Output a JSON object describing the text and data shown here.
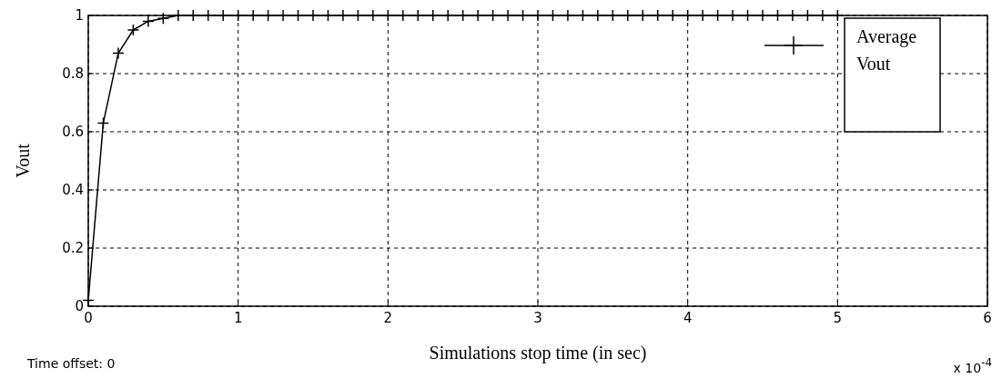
{
  "chart_data": {
    "type": "line",
    "xlabel": "Simulations stop time (in sec)",
    "ylabel": "Vout",
    "xlim": [
      0,
      6
    ],
    "ylim": [
      0,
      1
    ],
    "xticks": [
      0,
      1,
      2,
      3,
      4,
      5,
      6
    ],
    "yticks": [
      0,
      0.2,
      0.4,
      0.6,
      0.8,
      1
    ],
    "grid": true,
    "legend": "top right",
    "marker": "cross",
    "line_style": "solid",
    "annotations": [
      "Time offset:  0",
      "x 10$^{-4}$"
    ],
    "series": [
      {
        "name": "Average Vout",
        "color": "#000000",
        "x": [
          0,
          0.1,
          0.2,
          0.3,
          0.4,
          0.5,
          0.6,
          0.7,
          0.8,
          0.9,
          1,
          1.1,
          1.2,
          1.3,
          1.4,
          1.5,
          1.6,
          1.7,
          1.8,
          1.9,
          2,
          2.1,
          2.2,
          2.3,
          2.4,
          2.5,
          2.6,
          2.7,
          2.8,
          2.9,
          3,
          3.1,
          3.2,
          3.3,
          3.4,
          3.5,
          3.6,
          3.7,
          3.8,
          3.9,
          4,
          4.1,
          4.2,
          4.3,
          4.4,
          4.5,
          4.6,
          4.7,
          4.8,
          4.9,
          5
        ],
        "values": [
          0.02,
          0.63,
          0.87,
          0.95,
          0.98,
          0.99,
          1,
          1,
          1,
          1,
          1,
          1,
          1,
          1,
          1,
          1,
          1,
          1,
          1,
          1,
          1,
          1,
          1,
          1,
          1,
          1,
          1,
          1,
          1,
          1,
          1,
          1,
          1,
          1,
          1,
          1,
          1,
          1,
          1,
          1,
          1,
          1,
          1,
          1,
          1,
          1,
          1,
          1,
          1,
          1,
          1
        ]
      }
    ]
  }
}
